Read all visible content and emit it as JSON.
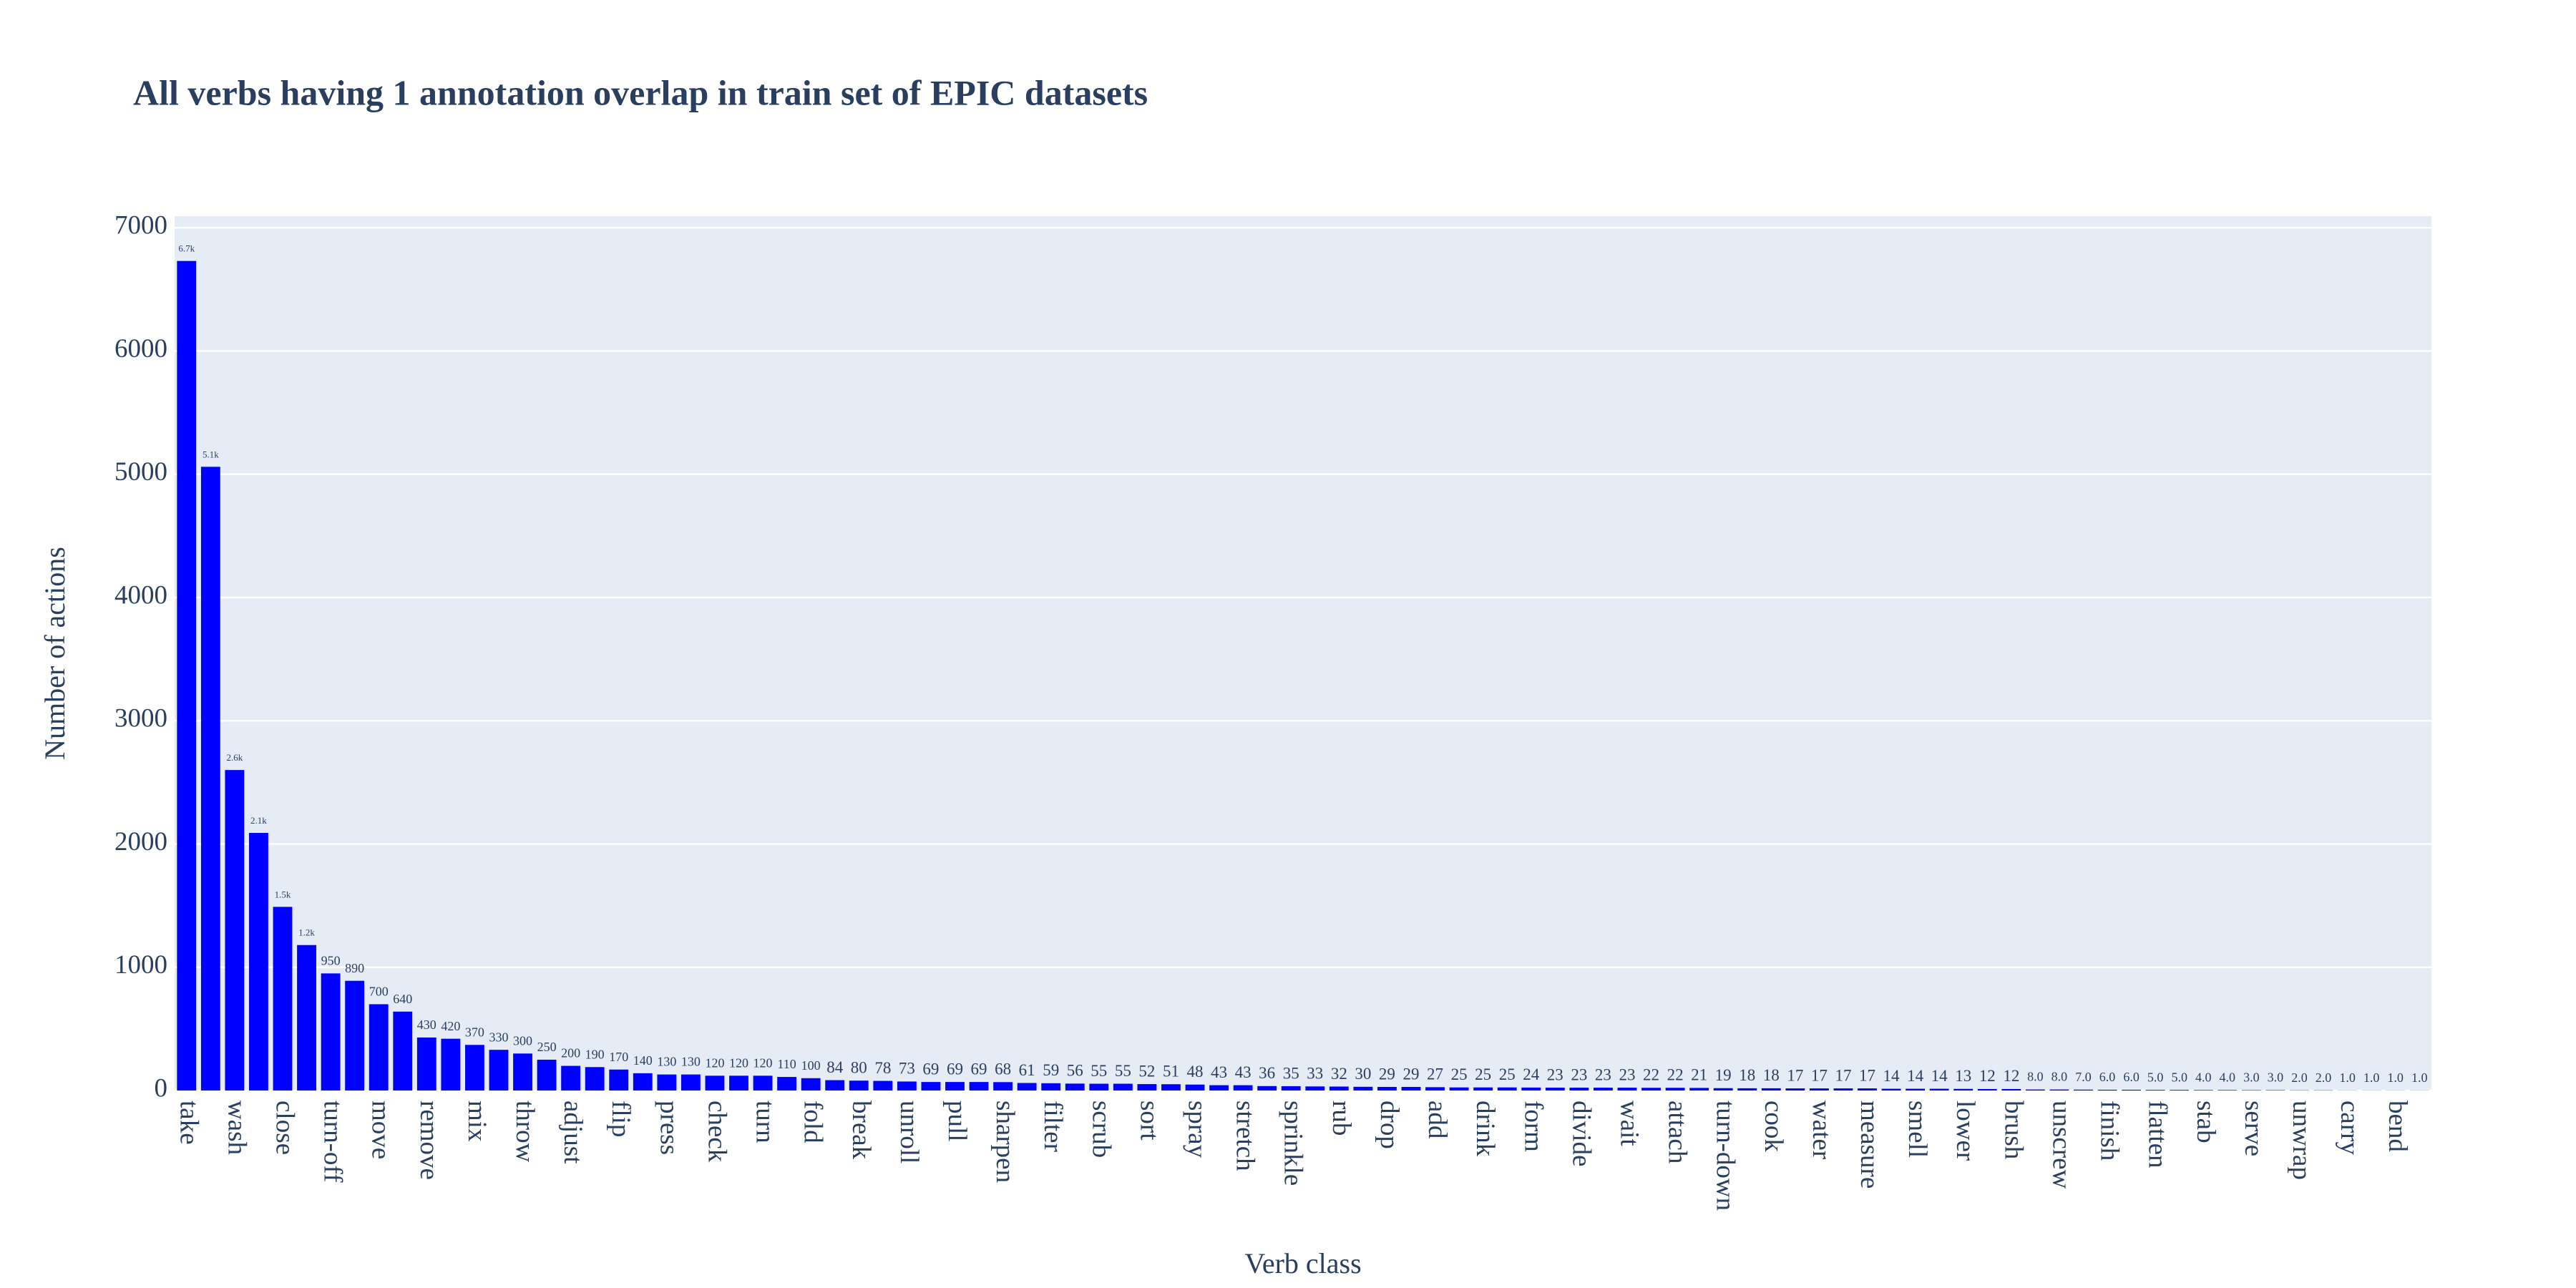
{
  "chart_data": {
    "type": "bar",
    "title": "All verbs having 1 annotation overlap in train set of EPIC datasets",
    "x_label": "Verb class",
    "y_label": "Number of actions",
    "categories": [
      "take",
      null,
      "wash",
      null,
      "close",
      null,
      "turn-off",
      null,
      "move",
      null,
      "remove",
      null,
      "mix",
      null,
      "throw",
      null,
      "adjust",
      null,
      "flip",
      null,
      "press",
      null,
      "check",
      null,
      "turn",
      null,
      "fold",
      null,
      "break",
      null,
      "unroll",
      null,
      "pull",
      null,
      "sharpen",
      null,
      "filter",
      null,
      "scrub",
      null,
      "sort",
      null,
      "spray",
      null,
      "stretch",
      null,
      "sprinkle",
      null,
      "rub",
      null,
      "drop",
      null,
      "add",
      null,
      "drink",
      null,
      "form",
      null,
      "divide",
      null,
      "wait",
      null,
      "attach",
      null,
      "turn-down",
      null,
      "cook",
      null,
      "water",
      null,
      "measure",
      null,
      "smell",
      null,
      "lower",
      null,
      "brush",
      null,
      "unscrew",
      null,
      "finish",
      null,
      "flatten",
      null,
      "stab",
      null,
      "serve",
      null,
      "unwrap",
      null,
      "carry",
      null,
      "bend",
      null
    ],
    "values": [
      6730,
      5060,
      2600,
      2090,
      1490,
      1180,
      950,
      890,
      700,
      640,
      430,
      420,
      370,
      330,
      300,
      250,
      200,
      190,
      170,
      140,
      130,
      130,
      120,
      120,
      120,
      110,
      100,
      84,
      80,
      78,
      73,
      69,
      69,
      69,
      68,
      61,
      59,
      56,
      55,
      55,
      52,
      51,
      48,
      43,
      43,
      36,
      35,
      33,
      32,
      30,
      29,
      29,
      27,
      25,
      25,
      25,
      24,
      23,
      23,
      23,
      23,
      22,
      22,
      21,
      19,
      18,
      18,
      17,
      17,
      17,
      17,
      14,
      14,
      14,
      13,
      12,
      12,
      8,
      8,
      7,
      6,
      6,
      5,
      5,
      4,
      4,
      3,
      3,
      2,
      2,
      1,
      1,
      1,
      1
    ],
    "value_labels": [
      "6.7k",
      "5.1k",
      "2.6k",
      "2.1k",
      "1.5k",
      "1.2k",
      "950",
      "890",
      "700",
      "640",
      "430",
      "420",
      "370",
      "330",
      "300",
      "250",
      "200",
      "190",
      "170",
      "140",
      "130",
      "130",
      "120",
      "120",
      "120",
      "110",
      "100",
      "84",
      "80",
      "78",
      "73",
      "69",
      "69",
      "69",
      "68",
      "61",
      "59",
      "56",
      "55",
      "55",
      "52",
      "51",
      "48",
      "43",
      "43",
      "36",
      "35",
      "33",
      "32",
      "30",
      "29",
      "29",
      "27",
      "25",
      "25",
      "25",
      "24",
      "23",
      "23",
      "23",
      "23",
      "22",
      "22",
      "21",
      "19",
      "18",
      "18",
      "17",
      "17",
      "17",
      "17",
      "14",
      "14",
      "14",
      "13",
      "12",
      "12",
      "8.0",
      "8.0",
      "7.0",
      "6.0",
      "6.0",
      "5.0",
      "5.0",
      "4.0",
      "4.0",
      "3.0",
      "3.0",
      "2.0",
      "2.0",
      "1.0",
      "1.0",
      "1.0",
      "1.0"
    ],
    "color": "#0000ff",
    "ylim": [
      0,
      7094
    ],
    "yticks": [
      0,
      1000,
      2000,
      3000,
      4000,
      5000,
      6000,
      7000
    ],
    "grid": true
  }
}
